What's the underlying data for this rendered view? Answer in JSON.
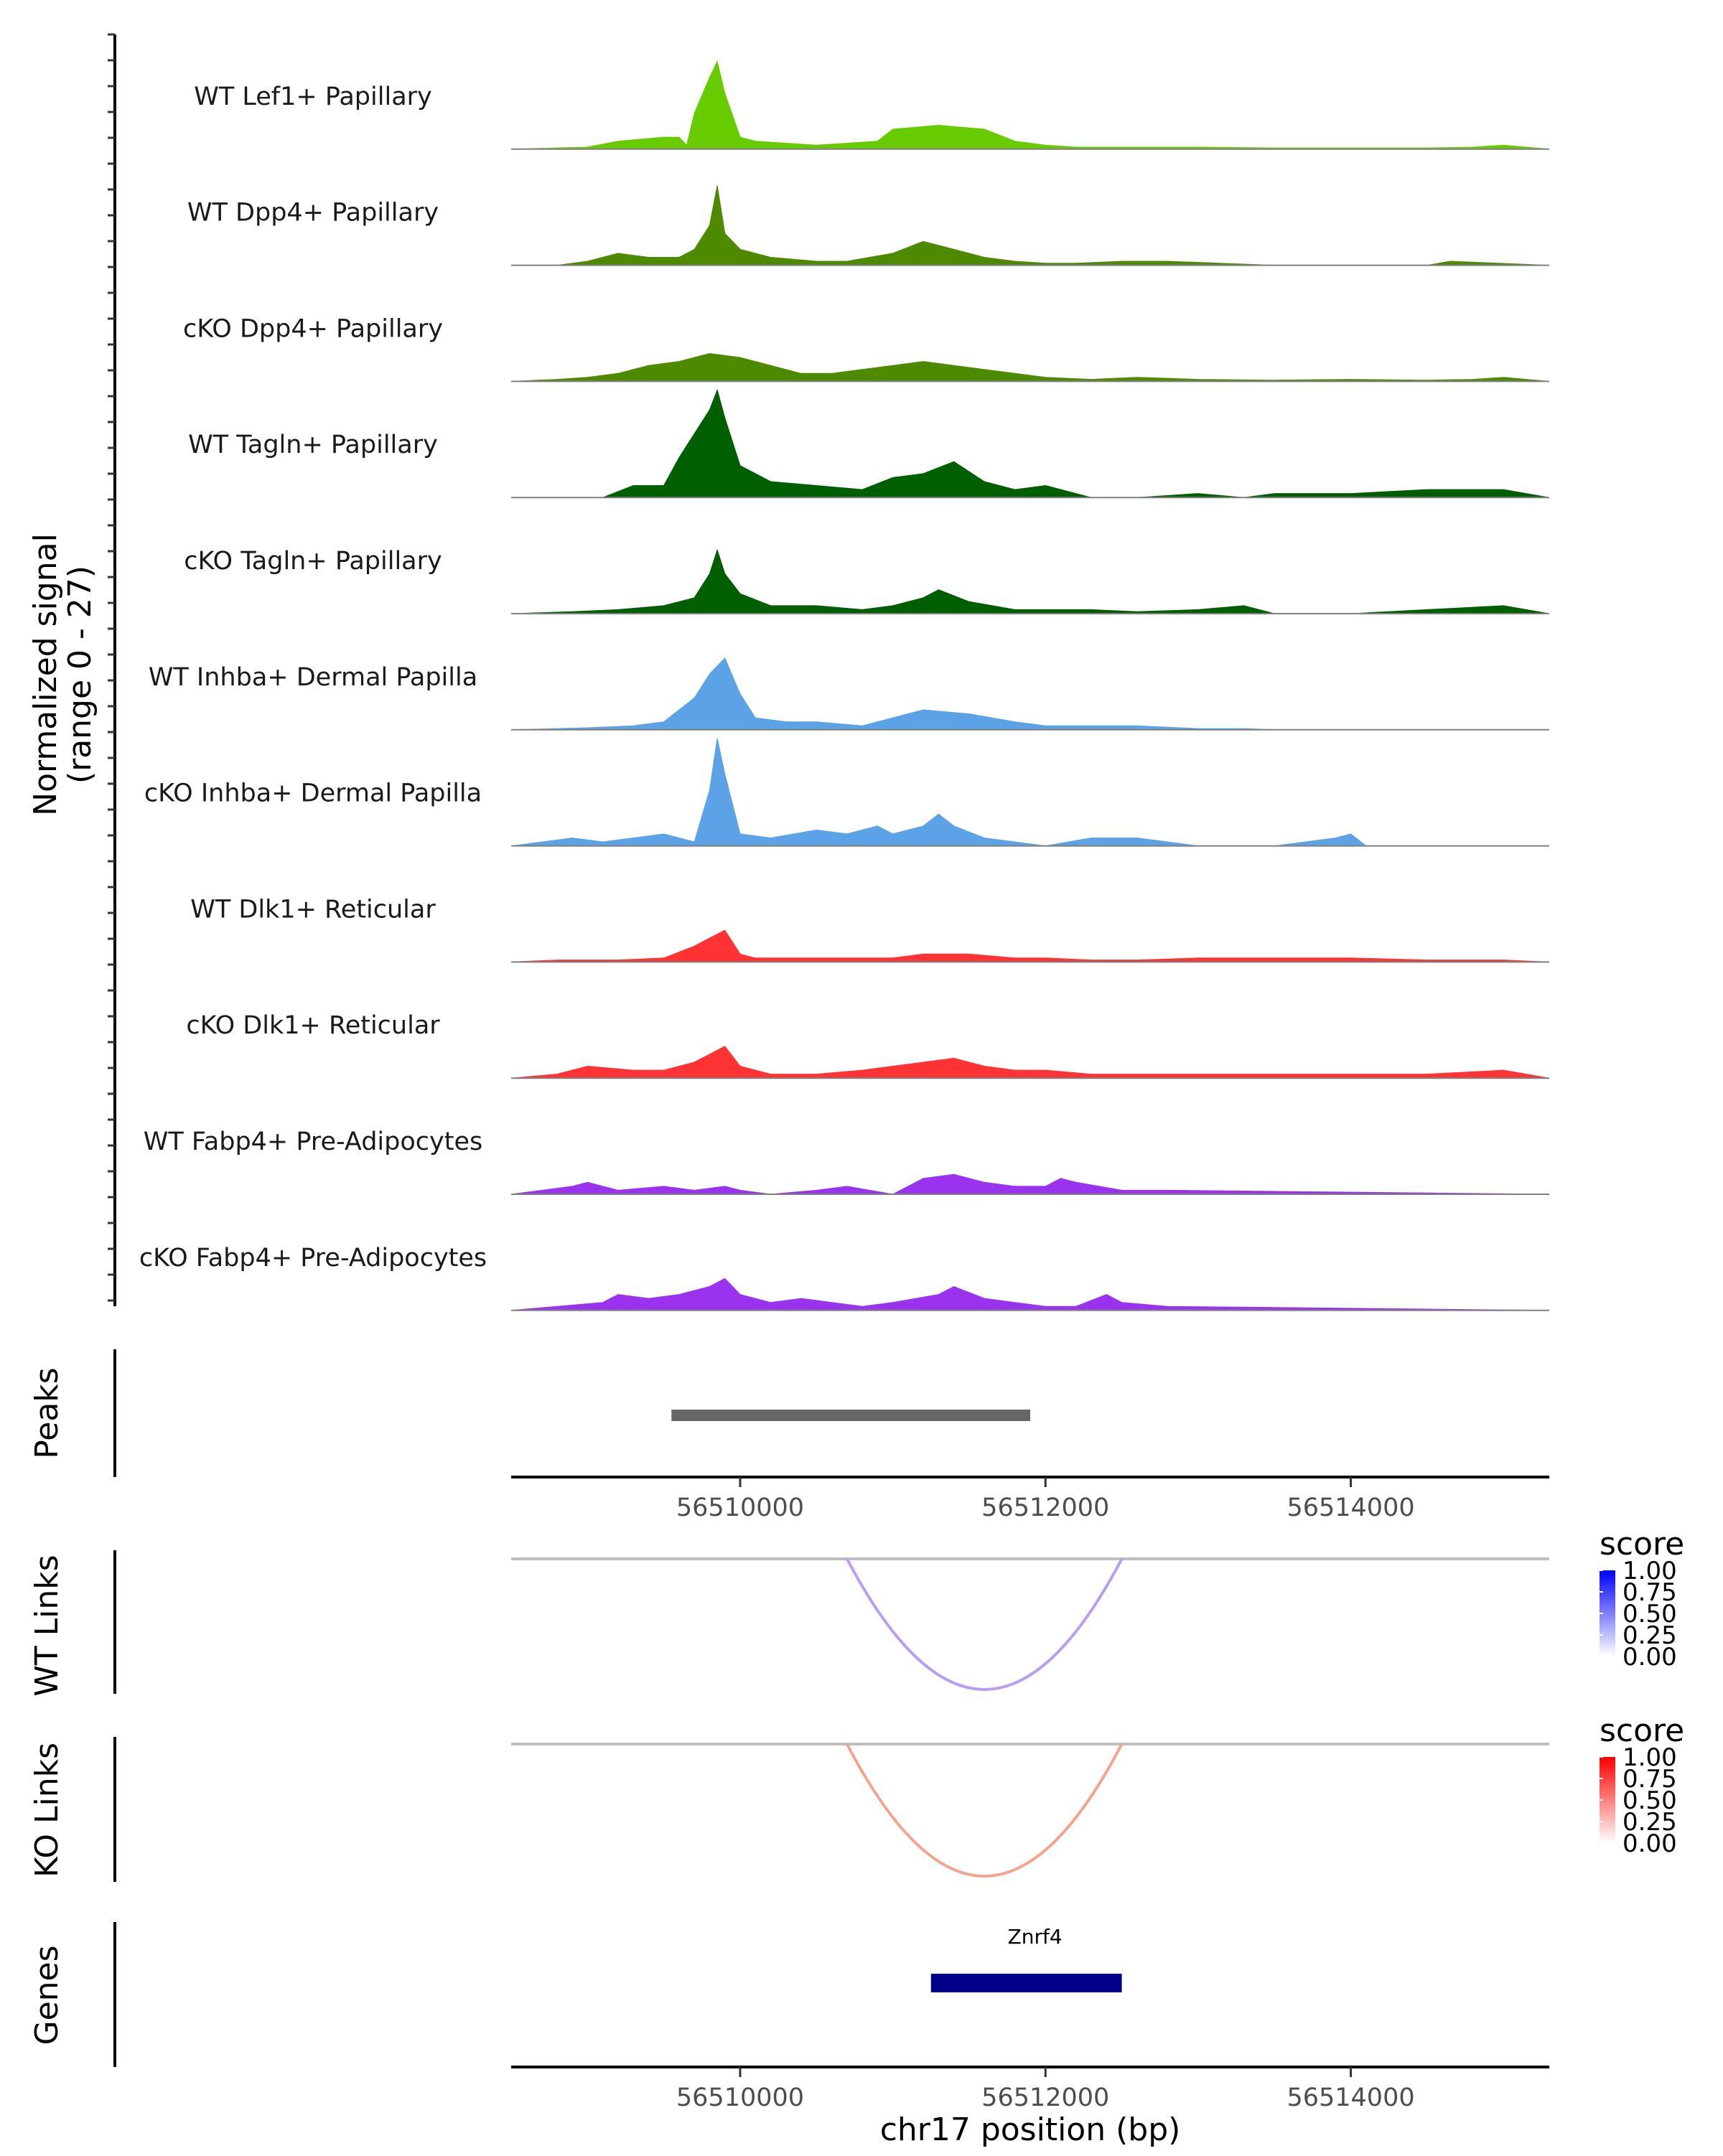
{
  "chart_data": {
    "type": "area",
    "title": "",
    "xlabel": "chr17 position (bp)",
    "xlim": [
      56508500,
      56515300
    ],
    "x_ticks": [
      56510000,
      56512000,
      56514000
    ],
    "x_tick_labels": [
      "56510000",
      "56512000",
      "56514000"
    ],
    "coverage": {
      "ylabel_line1": "Normalized signal",
      "ylabel_line2": "(range 0 - 27)",
      "ylim": [
        0,
        27
      ],
      "tracks": [
        {
          "name": "WT Lef1+ Papillary",
          "color": "#66CC00",
          "x": [
            56508500,
            56509000,
            56509200,
            56509500,
            56509600,
            56509650,
            56509700,
            56509800,
            56509850,
            56509900,
            56510000,
            56510100,
            56510500,
            56510900,
            56511000,
            56511300,
            56511600,
            56511800,
            56512000,
            56512200,
            56512600,
            56513000,
            56513500,
            56514000,
            56514500,
            56514800,
            56515000,
            56515300
          ],
          "values": [
            0,
            0.5,
            2,
            3,
            3,
            1,
            9,
            18,
            22,
            14,
            3,
            2,
            1,
            2,
            5,
            6,
            5,
            2,
            1,
            0.5,
            0.5,
            0.5,
            0.3,
            0.3,
            0.3,
            0.5,
            1,
            0
          ]
        },
        {
          "name": "WT Dpp4+ Papillary",
          "color": "#4E8A00",
          "x": [
            56508500,
            56508800,
            56509000,
            56509200,
            56509400,
            56509600,
            56509700,
            56509800,
            56509850,
            56509900,
            56510000,
            56510200,
            56510500,
            56510700,
            56511000,
            56511200,
            56511600,
            56511800,
            56512000,
            56512200,
            56512500,
            56512800,
            56513500,
            56514000,
            56514500,
            56514650,
            56515300
          ],
          "values": [
            0,
            0,
            1,
            3,
            2,
            2,
            4,
            10,
            20,
            8,
            4,
            2,
            1,
            1,
            3,
            6,
            2,
            1,
            0.5,
            0.5,
            1,
            1,
            0,
            0,
            0,
            1,
            0
          ]
        },
        {
          "name": "cKO Dpp4+ Papillary",
          "color": "#4E8A00",
          "x": [
            56508500,
            56508800,
            56509000,
            56509200,
            56509400,
            56509600,
            56509800,
            56510000,
            56510200,
            56510400,
            56510600,
            56510800,
            56511000,
            56511200,
            56511400,
            56511600,
            56511800,
            56512000,
            56512300,
            56512600,
            56513000,
            56513500,
            56514000,
            56514500,
            56514800,
            56515000,
            56515300
          ],
          "values": [
            0,
            0.5,
            1,
            2,
            4,
            5,
            7,
            6,
            4,
            2,
            2,
            3,
            4,
            5,
            4,
            3,
            2,
            1,
            0.5,
            1,
            0.5,
            0.3,
            0.5,
            0.3,
            0.5,
            1,
            0
          ]
        },
        {
          "name": "WT Tagln+ Papillary",
          "color": "#005F00",
          "x": [
            56508500,
            56509100,
            56509300,
            56509500,
            56509600,
            56509700,
            56509800,
            56509850,
            56509900,
            56510000,
            56510200,
            56510500,
            56510800,
            56511000,
            56511200,
            56511400,
            56511600,
            56511800,
            56512000,
            56512300,
            56512600,
            56513000,
            56513300,
            56513500,
            56514000,
            56514500,
            56515000,
            56515300
          ],
          "values": [
            0,
            0,
            3,
            3,
            10,
            16,
            22,
            27,
            20,
            8,
            4,
            3,
            2,
            5,
            6,
            9,
            4,
            2,
            3,
            0,
            0,
            1,
            0,
            1,
            1,
            2,
            2,
            0
          ]
        },
        {
          "name": "cKO Tagln+ Papillary",
          "color": "#005F00",
          "x": [
            56508500,
            56508900,
            56509200,
            56509500,
            56509700,
            56509800,
            56509850,
            56509900,
            56510000,
            56510200,
            56510500,
            56510800,
            56511000,
            56511200,
            56511300,
            56511500,
            56511800,
            56512000,
            56512300,
            56512600,
            56513000,
            56513300,
            56513500,
            56514000,
            56514500,
            56515000,
            56515300
          ],
          "values": [
            0,
            0.5,
            1,
            2,
            4,
            10,
            16,
            10,
            5,
            2,
            2,
            1,
            2,
            4,
            6,
            3,
            1,
            1,
            1,
            0.5,
            1,
            2,
            0,
            0,
            1,
            2,
            0
          ]
        },
        {
          "name": "WT Inhba+ Dermal Papilla",
          "color": "#5BA3E6",
          "x": [
            56508500,
            56509000,
            56509300,
            56509500,
            56509700,
            56509800,
            56509900,
            56510000,
            56510100,
            56510300,
            56510500,
            56510800,
            56511000,
            56511200,
            56511500,
            56511800,
            56512000,
            56512300,
            56512600,
            56513000,
            56513300,
            56513500,
            56515300
          ],
          "values": [
            0,
            0.5,
            1,
            2,
            8,
            14,
            18,
            9,
            3,
            2,
            2,
            1,
            3,
            5,
            4,
            2,
            1,
            1,
            1,
            0.3,
            0.3,
            0,
            0
          ]
        },
        {
          "name": "cKO Inhba+ Dermal Papilla",
          "color": "#5BA3E6",
          "x": [
            56508500,
            56508900,
            56509100,
            56509300,
            56509500,
            56509700,
            56509800,
            56509850,
            56509900,
            56510000,
            56510200,
            56510500,
            56510700,
            56510900,
            56511000,
            56511200,
            56511300,
            56511400,
            56511600,
            56511800,
            56512000,
            56512300,
            56512600,
            56513000,
            56513500,
            56513900,
            56514000,
            56514100,
            56515300
          ],
          "values": [
            0,
            2,
            1,
            2,
            3,
            1,
            14,
            27,
            18,
            3,
            2,
            4,
            3,
            5,
            3,
            5,
            8,
            5,
            2,
            1,
            0,
            2,
            2,
            0,
            0,
            2,
            3,
            0,
            0
          ]
        },
        {
          "name": "WT Dlk1+ Reticular",
          "color": "#FF3333",
          "x": [
            56508500,
            56508800,
            56509200,
            56509500,
            56509700,
            56509800,
            56509900,
            56510000,
            56510100,
            56510500,
            56510800,
            56511000,
            56511200,
            56511500,
            56511800,
            56512000,
            56512300,
            56512600,
            56513000,
            56513300,
            56513500,
            56514000,
            56514500,
            56515000,
            56515300
          ],
          "values": [
            0,
            0.5,
            0.5,
            1,
            4,
            6,
            8,
            2,
            1,
            1,
            1,
            1,
            2,
            2,
            1,
            1,
            0.5,
            0.5,
            1,
            1,
            1,
            1,
            0.5,
            0.5,
            0
          ]
        },
        {
          "name": "cKO Dlk1+ Reticular",
          "color": "#FF3333",
          "x": [
            56508500,
            56508800,
            56509000,
            56509300,
            56509500,
            56509700,
            56509800,
            56509900,
            56510000,
            56510200,
            56510500,
            56510800,
            56511000,
            56511200,
            56511400,
            56511600,
            56511800,
            56512000,
            56512300,
            56512600,
            56513000,
            56513300,
            56513600,
            56514000,
            56514500,
            56515000,
            56515300
          ],
          "values": [
            0,
            1,
            3,
            2,
            2,
            4,
            6,
            8,
            3,
            1,
            1,
            2,
            3,
            4,
            5,
            3,
            2,
            2,
            1,
            1,
            1,
            1,
            1,
            1,
            1,
            2,
            0
          ]
        },
        {
          "name": "WT Fabp4+ Pre-Adipocytes",
          "color": "#9933EE",
          "x": [
            56508500,
            56508900,
            56509000,
            56509200,
            56509500,
            56509700,
            56509900,
            56510000,
            56510200,
            56510500,
            56510700,
            56511000,
            56511200,
            56511400,
            56511600,
            56511800,
            56512000,
            56512100,
            56512200,
            56512500,
            56512800,
            56515300
          ],
          "values": [
            0,
            2,
            3,
            1,
            2,
            1,
            2,
            1,
            0,
            1,
            2,
            0,
            4,
            5,
            3,
            2,
            2,
            4,
            3,
            1,
            1,
            0
          ]
        },
        {
          "name": "cKO Fabp4+ Pre-Adipocytes",
          "color": "#9933EE",
          "x": [
            56508500,
            56509100,
            56509200,
            56509400,
            56509600,
            56509800,
            56509900,
            56510000,
            56510200,
            56510400,
            56510600,
            56510800,
            56511000,
            56511300,
            56511400,
            56511600,
            56511800,
            56512000,
            56512200,
            56512400,
            56512500,
            56512800,
            56515300
          ],
          "values": [
            0,
            2,
            4,
            3,
            4,
            6,
            8,
            4,
            2,
            3,
            2,
            1,
            2,
            4,
            6,
            3,
            2,
            1,
            1,
            4,
            2,
            1,
            0
          ]
        }
      ]
    },
    "peaks": {
      "label": "Peaks",
      "regions": [
        {
          "start": 56509550,
          "end": 56511900
        }
      ]
    },
    "links": [
      {
        "label": "WT Links",
        "start": 56510700,
        "end": 56512500,
        "score": 0.4,
        "color": "#B89CF6",
        "legend": {
          "title": "score",
          "ticks": [
            "1.00",
            "0.75",
            "0.50",
            "0.25",
            "0.00"
          ],
          "color_low": "#FFFFFF",
          "color_high": "#0000FF"
        }
      },
      {
        "label": "KO Links",
        "start": 56510700,
        "end": 56512500,
        "score": 0.4,
        "color": "#F4A48E",
        "legend": {
          "title": "score",
          "ticks": [
            "1.00",
            "0.75",
            "0.50",
            "0.25",
            "0.00"
          ],
          "color_low": "#FFFFFF",
          "color_high": "#FF0000"
        }
      }
    ],
    "genes": {
      "label": "Genes",
      "items": [
        {
          "name": "Znrf4",
          "start": 56511250,
          "end": 56512500,
          "color": "#00008B"
        }
      ]
    }
  }
}
